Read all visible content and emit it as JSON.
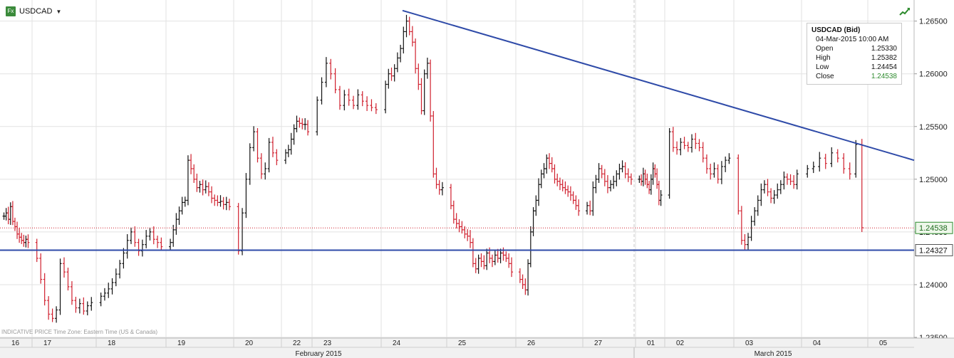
{
  "header": {
    "symbol": "USDCAD",
    "badge": "Fx",
    "trend_icon": "trend-line-icon",
    "dropdown_icon": "chevron-down-icon"
  },
  "info_box": {
    "title": "USDCAD (Bid)",
    "datetime": "04-Mar-2015 10:00 AM",
    "rows": [
      {
        "label": "Open",
        "value": "1.25330"
      },
      {
        "label": "High",
        "value": "1.25382"
      },
      {
        "label": "Low",
        "value": "1.24454"
      },
      {
        "label": "Close",
        "value": "1.24538"
      }
    ]
  },
  "footer_note": "INDICATIVE PRICE   Time Zone: Eastern Time (US & Canada)",
  "colors": {
    "up": "#111111",
    "down": "#d0202e",
    "trend": "#2e4aa8",
    "grid": "#e2e2e2",
    "current": "#2e8b2e"
  },
  "chart_data": {
    "type": "ohlc",
    "title": "",
    "xlabel": "",
    "ylabel": "",
    "ylim": [
      1.235,
      1.267
    ],
    "y_ticks": [
      "1.26500",
      "1.26000",
      "1.25500",
      "1.25000",
      "1.24500",
      "1.24000",
      "1.23500"
    ],
    "grid": true,
    "legend": "none",
    "x_ticks": [
      "16",
      "17",
      "18",
      "19",
      "20",
      "22",
      "23",
      "24",
      "25",
      "26",
      "27",
      "01",
      "02",
      "03",
      "04",
      "05"
    ],
    "month_labels": [
      "February 2015",
      "March 2015"
    ],
    "price_labels": [
      {
        "label": "1.24538",
        "value": 1.24538,
        "style": "current"
      },
      {
        "label": "1.24327",
        "value": 1.24327,
        "style": "support"
      }
    ],
    "series": [
      {
        "day": "16",
        "close": [
          1.2465,
          1.2468,
          1.2462,
          1.2474,
          1.246,
          1.2455,
          1.2448,
          1.2445,
          1.2442,
          1.244,
          1.2443,
          1.244
        ]
      },
      {
        "day": "17",
        "close": [
          1.2425,
          1.2405,
          1.2385,
          1.2372,
          1.2368,
          1.2376,
          1.242,
          1.2412,
          1.2398,
          1.2385,
          1.2378,
          1.2382,
          1.2375,
          1.238,
          1.2383
        ]
      },
      {
        "day": "18",
        "close": [
          1.2389,
          1.2392,
          1.2396,
          1.2402,
          1.241,
          1.242,
          1.243,
          1.2442,
          1.245,
          1.244,
          1.2432,
          1.2438,
          1.2446,
          1.245,
          1.2443,
          1.244,
          1.2436
        ]
      },
      {
        "day": "19",
        "close": [
          1.244,
          1.2452,
          1.2462,
          1.247,
          1.2478,
          1.248,
          1.2518,
          1.251,
          1.25,
          1.2492,
          1.2495,
          1.249,
          1.2493,
          1.2488,
          1.2482,
          1.248,
          1.2478,
          1.2479,
          1.2476,
          1.2478,
          1.2474
        ]
      },
      {
        "day": "20",
        "close": [
          1.2432,
          1.2468,
          1.25,
          1.253,
          1.2545,
          1.252,
          1.2505,
          1.251,
          1.2535,
          1.2525,
          1.2518
        ]
      },
      {
        "day": "22",
        "close": [
          1.2525,
          1.2528,
          1.2538,
          1.2548,
          1.2555,
          1.2553,
          1.2552,
          1.2552,
          1.2545
        ]
      },
      {
        "day": "23",
        "close": [
          1.2575,
          1.2592,
          1.261,
          1.26,
          1.2585,
          1.257,
          1.258,
          1.2575,
          1.257,
          1.258,
          1.2574,
          1.257,
          1.2568,
          1.2566
        ]
      },
      {
        "day": "24",
        "close": [
          1.259,
          1.26,
          1.2598,
          1.2605,
          1.2615,
          1.2624,
          1.264,
          1.265,
          1.264,
          1.263,
          1.2605,
          1.259,
          1.2565,
          1.26,
          1.261,
          1.256,
          1.2505,
          1.2495,
          1.249,
          1.2492
        ]
      },
      {
        "day": "25",
        "close": [
          1.2475,
          1.2462,
          1.2458,
          1.2455,
          1.2452,
          1.2448,
          1.2446,
          1.244,
          1.242,
          1.2415,
          1.2425,
          1.2422,
          1.2418,
          1.243,
          1.2425,
          1.2422,
          1.2428,
          1.2425,
          1.243,
          1.2428,
          1.2425,
          1.242,
          1.2412
        ]
      },
      {
        "day": "26",
        "close": [
          1.2405,
          1.24,
          1.2395,
          1.242,
          1.245,
          1.247,
          1.248,
          1.2495,
          1.2505,
          1.251,
          1.252,
          1.2515,
          1.251,
          1.25,
          1.2498,
          1.2495,
          1.2492,
          1.249,
          1.2488,
          1.2485,
          1.248,
          1.2475,
          1.247
        ]
      },
      {
        "day": "27",
        "close": [
          1.2475,
          1.247,
          1.2492,
          1.25,
          1.251,
          1.2505,
          1.2498,
          1.2492,
          1.2495,
          1.2498,
          1.2505,
          1.251,
          1.2512,
          1.2505,
          1.2502,
          1.25
        ]
      },
      {
        "day": "01",
        "close": [
          1.25,
          1.2498,
          1.2505,
          1.25,
          1.2495,
          1.249,
          1.25,
          1.251,
          1.2505,
          1.2495,
          1.248,
          1.2485
        ]
      },
      {
        "day": "02",
        "close": [
          1.2545,
          1.253,
          1.2528,
          1.2535,
          1.2532,
          1.253,
          1.2538,
          1.2534,
          1.253,
          1.252,
          1.251,
          1.2505,
          1.251,
          1.25,
          1.2512,
          1.2518,
          1.252
        ]
      },
      {
        "day": "03",
        "close": [
          1.247,
          1.2442,
          1.2438,
          1.2445,
          1.246,
          1.247,
          1.248,
          1.249,
          1.2495,
          1.2488,
          1.2482,
          1.2485,
          1.249,
          1.2495,
          1.2502,
          1.25,
          1.2498,
          1.2495,
          1.2505
        ]
      },
      {
        "day": "04",
        "close": [
          1.251,
          1.2512,
          1.252,
          1.2515,
          1.2525,
          1.252,
          1.251,
          1.2505,
          1.2533,
          1.2454
        ]
      }
    ],
    "trendlines": [
      {
        "name": "",
        "from": [
          "24",
          1.266
        ],
        "to": [
          "05",
          1.2518
        ]
      },
      {
        "name": "",
        "value": 1.24327
      }
    ]
  }
}
